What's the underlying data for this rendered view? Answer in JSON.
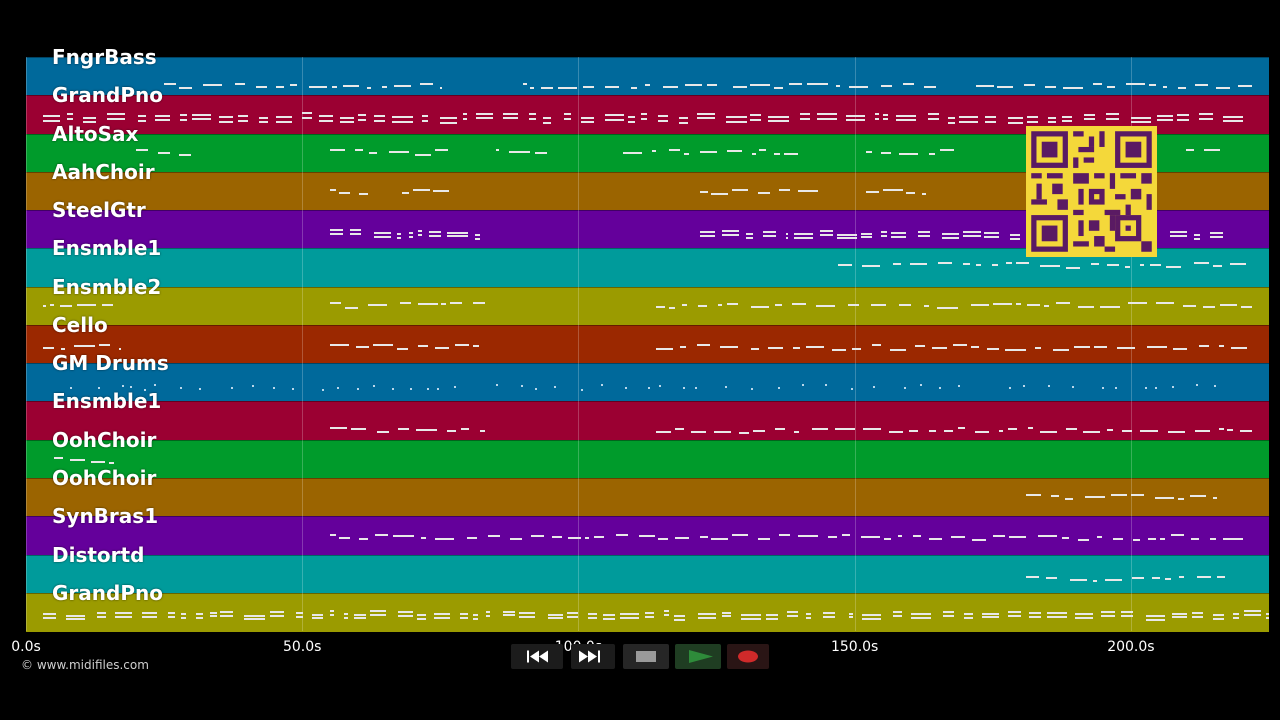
{
  "tracks": [
    {
      "label": "FngrBass",
      "color": "#00699b"
    },
    {
      "label": "GrandPno",
      "color": "#9b0032"
    },
    {
      "label": "AltoSax",
      "color": "#009b2b"
    },
    {
      "label": "AahChoir",
      "color": "#9b6400"
    },
    {
      "label": "SteelGtr",
      "color": "#64009b"
    },
    {
      "label": "Ensmble1",
      "color": "#009b9b"
    },
    {
      "label": "Ensmble2",
      "color": "#9b9b00"
    },
    {
      "label": "Cello",
      "color": "#9b2800"
    },
    {
      "label": "GM Drums",
      "color": "#00699b"
    },
    {
      "label": "Ensmble1",
      "color": "#9b0032"
    },
    {
      "label": "OohChoir",
      "color": "#009b2b"
    },
    {
      "label": "OohChoir",
      "color": "#9b6400"
    },
    {
      "label": "SynBras1",
      "color": "#64009b"
    },
    {
      "label": "Distortd",
      "color": "#009b9b"
    },
    {
      "label": "GrandPno",
      "color": "#9b9b00"
    }
  ],
  "time_axis": {
    "ticks": [
      "0.0s",
      "50.0s",
      "100.0s",
      "150.0s",
      "200.0s"
    ],
    "tick_values": [
      0,
      50,
      100,
      150,
      200
    ],
    "max": 225
  },
  "copyright": "© www.midifiles.com",
  "transport": {
    "rewind": "rewind-icon",
    "fast_forward": "fast-forward-icon",
    "stop": "stop-icon",
    "play": "play-icon",
    "record": "record-icon",
    "colors": {
      "play": "#2e8b3a",
      "record": "#d02a2a",
      "stop": "#9a9a9a"
    }
  }
}
